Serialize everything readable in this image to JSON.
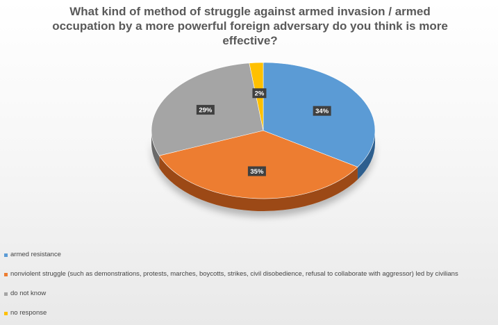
{
  "chart_data": {
    "type": "pie",
    "title": "What kind of method of struggle against armed invasion / armed\noccupation by a more powerful foreign adversary do you think is more\neffective?",
    "categories": [
      "armed resistance",
      "nonviolent struggle (such as demonstrations, protests, marches, boycotts, strikes, civil disobedience, refusal to collaborate with aggressor) led by civilians",
      "do not know",
      "no response"
    ],
    "values": [
      34,
      35,
      29,
      2
    ],
    "data_labels": [
      "34%",
      "35%",
      "29%",
      "2%"
    ],
    "colors": [
      "#5B9BD5",
      "#ED7D31",
      "#A5A5A5",
      "#FFC000"
    ],
    "side_colors": [
      "#2E5E8E",
      "#9C4A16",
      "#6B6B6B",
      "#B88A00"
    ],
    "legend_position": "bottom",
    "style": "3d-pie"
  }
}
